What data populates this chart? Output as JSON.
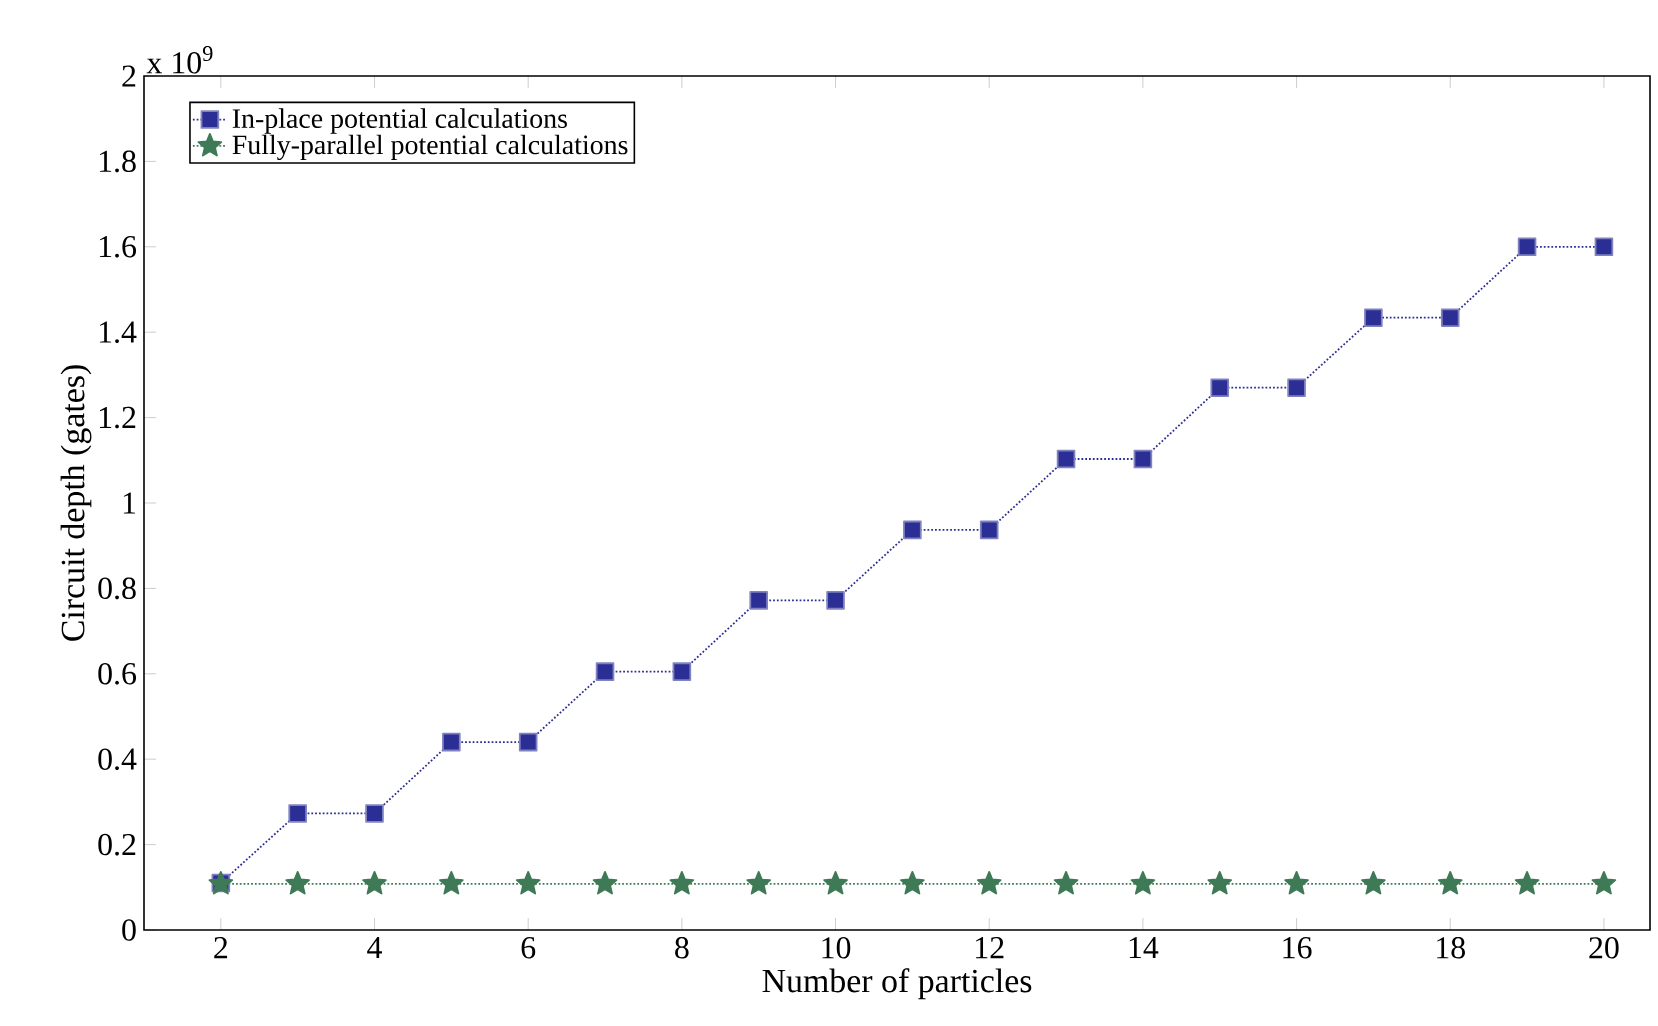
{
  "chart_data": {
    "type": "line",
    "xlabel": "Number of particles",
    "ylabel": "Circuit depth (gates)",
    "annotations": [
      "x 10$^{9}$"
    ],
    "x": [
      2,
      3,
      4,
      5,
      6,
      7,
      8,
      9,
      10,
      11,
      12,
      13,
      14,
      15,
      16,
      17,
      18,
      19,
      20
    ],
    "series": [
      {
        "name": "In-place potential calculations",
        "color": "#2b2e94",
        "marker": "square",
        "values": [
          0.11,
          0.273,
          0.273,
          0.44,
          0.44,
          0.605,
          0.605,
          0.772,
          0.772,
          0.937,
          0.937,
          1.103,
          1.103,
          1.27,
          1.27,
          1.434,
          1.434,
          1.6,
          1.6
        ]
      },
      {
        "name": "Fully-parallel potential calculations",
        "color": "#3f7a57",
        "marker": "star",
        "values": [
          0.108,
          0.108,
          0.108,
          0.108,
          0.108,
          0.108,
          0.108,
          0.108,
          0.108,
          0.108,
          0.108,
          0.108,
          0.108,
          0.108,
          0.108,
          0.108,
          0.108,
          0.108,
          0.108
        ]
      }
    ],
    "xlim": [
      1,
      20.6
    ],
    "ylim": [
      0,
      2
    ],
    "xticks": [
      2,
      4,
      6,
      8,
      10,
      12,
      14,
      16,
      18,
      20
    ],
    "yticks": [
      0,
      0.2,
      0.4,
      0.6,
      0.8,
      1,
      1.2,
      1.4,
      1.6,
      1.8,
      2
    ],
    "grid": false,
    "legend": "top left",
    "line_style": "dotted"
  }
}
